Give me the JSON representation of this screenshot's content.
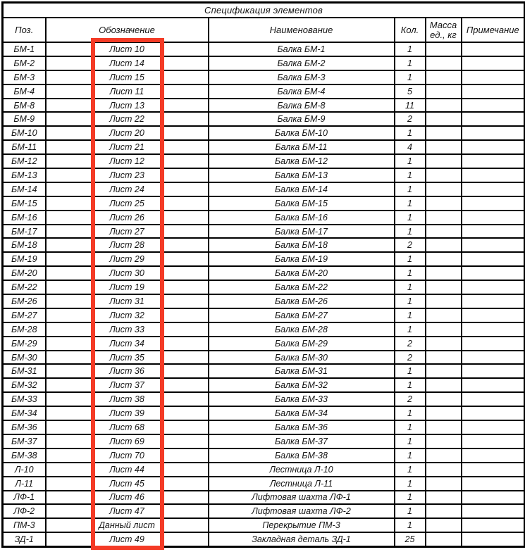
{
  "title": "Спецификация элементов",
  "highlight": {
    "color": "#f43b26",
    "marks": "designation-column-values"
  },
  "table": {
    "columns": [
      {
        "key": "pos",
        "label": "Поз."
      },
      {
        "key": "designation",
        "label": "Обозначение"
      },
      {
        "key": "name",
        "label": "Наименование"
      },
      {
        "key": "qty",
        "label": "Кол."
      },
      {
        "key": "mass",
        "label": "Масса ед., кг"
      },
      {
        "key": "note",
        "label": "Примечание"
      }
    ],
    "rows": [
      {
        "pos": "БМ-1",
        "designation": "Лист 10",
        "name": "Балка БМ-1",
        "qty": "1",
        "mass": "",
        "note": ""
      },
      {
        "pos": "БМ-2",
        "designation": "Лист 14",
        "name": "Балка БМ-2",
        "qty": "1",
        "mass": "",
        "note": ""
      },
      {
        "pos": "БМ-3",
        "designation": "Лист 15",
        "name": "Балка БМ-3",
        "qty": "1",
        "mass": "",
        "note": ""
      },
      {
        "pos": "БМ-4",
        "designation": "Лист 11",
        "name": "Балка БМ-4",
        "qty": "5",
        "mass": "",
        "note": ""
      },
      {
        "pos": "БМ-8",
        "designation": "Лист 13",
        "name": "Балка БМ-8",
        "qty": "11",
        "mass": "",
        "note": ""
      },
      {
        "pos": "БМ-9",
        "designation": "Лист 22",
        "name": "Балка БМ-9",
        "qty": "2",
        "mass": "",
        "note": ""
      },
      {
        "pos": "БМ-10",
        "designation": "Лист 20",
        "name": "Балка БМ-10",
        "qty": "1",
        "mass": "",
        "note": ""
      },
      {
        "pos": "БМ-11",
        "designation": "Лист 21",
        "name": "Балка БМ-11",
        "qty": "4",
        "mass": "",
        "note": ""
      },
      {
        "pos": "БМ-12",
        "designation": "Лист 12",
        "name": "Балка БМ-12",
        "qty": "1",
        "mass": "",
        "note": ""
      },
      {
        "pos": "БМ-13",
        "designation": "Лист 23",
        "name": "Балка БМ-13",
        "qty": "1",
        "mass": "",
        "note": ""
      },
      {
        "pos": "БМ-14",
        "designation": "Лист 24",
        "name": "Балка БМ-14",
        "qty": "1",
        "mass": "",
        "note": ""
      },
      {
        "pos": "БМ-15",
        "designation": "Лист 25",
        "name": "Балка БМ-15",
        "qty": "1",
        "mass": "",
        "note": ""
      },
      {
        "pos": "БМ-16",
        "designation": "Лист 26",
        "name": "Балка БМ-16",
        "qty": "1",
        "mass": "",
        "note": ""
      },
      {
        "pos": "БМ-17",
        "designation": "Лист 27",
        "name": "Балка БМ-17",
        "qty": "1",
        "mass": "",
        "note": ""
      },
      {
        "pos": "БМ-18",
        "designation": "Лист 28",
        "name": "Балка БМ-18",
        "qty": "2",
        "mass": "",
        "note": ""
      },
      {
        "pos": "БМ-19",
        "designation": "Лист 29",
        "name": "Балка БМ-19",
        "qty": "1",
        "mass": "",
        "note": ""
      },
      {
        "pos": "БМ-20",
        "designation": "Лист 30",
        "name": "Балка БМ-20",
        "qty": "1",
        "mass": "",
        "note": ""
      },
      {
        "pos": "БМ-22",
        "designation": "Лист 19",
        "name": "Балка БМ-22",
        "qty": "1",
        "mass": "",
        "note": ""
      },
      {
        "pos": "БМ-26",
        "designation": "Лист 31",
        "name": "Балка БМ-26",
        "qty": "1",
        "mass": "",
        "note": ""
      },
      {
        "pos": "БМ-27",
        "designation": "Лист 32",
        "name": "Балка БМ-27",
        "qty": "1",
        "mass": "",
        "note": ""
      },
      {
        "pos": "БМ-28",
        "designation": "Лист 33",
        "name": "Балка БМ-28",
        "qty": "1",
        "mass": "",
        "note": ""
      },
      {
        "pos": "БМ-29",
        "designation": "Лист 34",
        "name": "Балка БМ-29",
        "qty": "2",
        "mass": "",
        "note": ""
      },
      {
        "pos": "БМ-30",
        "designation": "Лист 35",
        "name": "Балка БМ-30",
        "qty": "2",
        "mass": "",
        "note": ""
      },
      {
        "pos": "БМ-31",
        "designation": "Лист 36",
        "name": "Балка БМ-31",
        "qty": "1",
        "mass": "",
        "note": ""
      },
      {
        "pos": "БМ-32",
        "designation": "Лист 37",
        "name": "Балка БМ-32",
        "qty": "1",
        "mass": "",
        "note": ""
      },
      {
        "pos": "БМ-33",
        "designation": "Лист 38",
        "name": "Балка БМ-33",
        "qty": "2",
        "mass": "",
        "note": ""
      },
      {
        "pos": "БМ-34",
        "designation": "Лист 39",
        "name": "Балка БМ-34",
        "qty": "1",
        "mass": "",
        "note": ""
      },
      {
        "pos": "БМ-36",
        "designation": "Лист 68",
        "name": "Балка БМ-36",
        "qty": "1",
        "mass": "",
        "note": ""
      },
      {
        "pos": "БМ-37",
        "designation": "Лист 69",
        "name": "Балка БМ-37",
        "qty": "1",
        "mass": "",
        "note": ""
      },
      {
        "pos": "БМ-38",
        "designation": "Лист 70",
        "name": "Балка БМ-38",
        "qty": "1",
        "mass": "",
        "note": ""
      },
      {
        "pos": "Л-10",
        "designation": "Лист 44",
        "name": "Лестница Л-10",
        "qty": "1",
        "mass": "",
        "note": ""
      },
      {
        "pos": "Л-11",
        "designation": "Лист 45",
        "name": "Лестница Л-11",
        "qty": "1",
        "mass": "",
        "note": ""
      },
      {
        "pos": "ЛФ-1",
        "designation": "Лист 46",
        "name": "Лифтовая шахта ЛФ-1",
        "qty": "1",
        "mass": "",
        "note": ""
      },
      {
        "pos": "ЛФ-2",
        "designation": "Лист 47",
        "name": "Лифтовая шахта ЛФ-2",
        "qty": "1",
        "mass": "",
        "note": ""
      },
      {
        "pos": "ПМ-3",
        "designation": "Данный лист",
        "name": "Перекрытие ПМ-3",
        "qty": "1",
        "mass": "",
        "note": ""
      },
      {
        "pos": "ЗД-1",
        "designation": "Лист 49",
        "name": "Закладная деталь ЗД-1",
        "qty": "25",
        "mass": "",
        "note": ""
      }
    ]
  }
}
